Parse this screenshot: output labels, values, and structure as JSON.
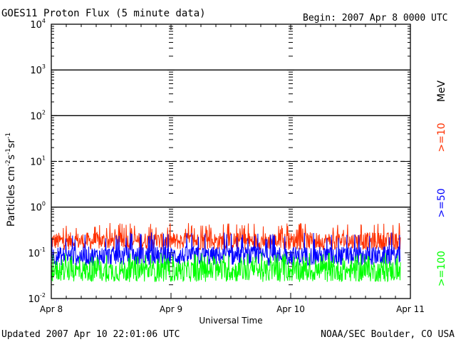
{
  "chart_data": {
    "type": "line",
    "title": "GOES11 Proton Flux (5 minute data)",
    "begin_label": "Begin: 2007 Apr 8 0000 UTC",
    "xlabel": "Universal Time",
    "ylabel_html": "Particles cm⁻²s⁻¹sr⁻¹",
    "ylabel_parts": [
      {
        "text": "Particles cm",
        "sup": false
      },
      {
        "text": "-2",
        "sup": true
      },
      {
        "text": "s",
        "sup": false
      },
      {
        "text": "-1",
        "sup": true
      },
      {
        "text": "sr",
        "sup": false
      },
      {
        "text": "-1",
        "sup": true
      }
    ],
    "y_scale": "log",
    "ylim": [
      0.01,
      10000
    ],
    "y_ticks": [
      {
        "base": "10",
        "exp": "-2",
        "value": 0.01
      },
      {
        "base": "10",
        "exp": "-1",
        "value": 0.1
      },
      {
        "base": "10",
        "exp": "0",
        "value": 1
      },
      {
        "base": "10",
        "exp": "1",
        "value": 10
      },
      {
        "base": "10",
        "exp": "2",
        "value": 100
      },
      {
        "base": "10",
        "exp": "3",
        "value": 1000
      },
      {
        "base": "10",
        "exp": "4",
        "value": 10000
      }
    ],
    "x_days": [
      0,
      3
    ],
    "x_ticks": [
      "Apr 8",
      "Apr 9",
      "Apr 10",
      "Apr 11"
    ],
    "data_end_day": 2.92,
    "threshold_lines": [
      {
        "value": 1000,
        "style": "solid"
      },
      {
        "value": 100,
        "style": "solid"
      },
      {
        "value": 10,
        "style": "dashed"
      },
      {
        "value": 1,
        "style": "solid"
      }
    ],
    "unit_label": "MeV",
    "series": [
      {
        "name": ">=10",
        "color": "#ff3000",
        "base": 0.18,
        "spread": 0.32,
        "spike_max": 0.45
      },
      {
        "name": ">=50",
        "color": "#0000ff",
        "base": 0.085,
        "spread": 0.35,
        "spike_max": 0.28
      },
      {
        "name": ">=100",
        "color": "#00ff00",
        "base": 0.04,
        "spread": 0.4,
        "spike_max": 0.1
      }
    ]
  },
  "footer": {
    "updated": "Updated 2007 Apr 10 22:01:06 UTC",
    "source": "NOAA/SEC Boulder, CO USA"
  }
}
